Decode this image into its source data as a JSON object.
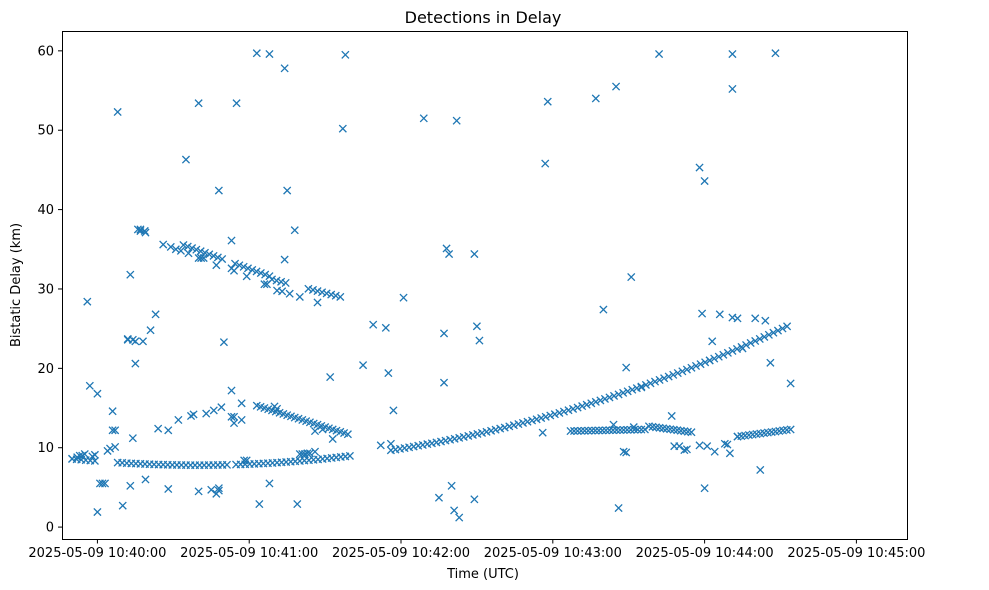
{
  "chart_data": {
    "type": "scatter",
    "title": "Detections in Delay",
    "xlabel": "Time (UTC)",
    "ylabel": "Bistatic Delay (km)",
    "marker": "x",
    "color": "#1f77b4",
    "x_unit": "seconds after 2025-05-09 10:39:00",
    "xlim": [
      46,
      380
    ],
    "ylim": [
      -1.5,
      62.5
    ],
    "x_ticks": [
      {
        "value": 60,
        "label": "2025-05-09 10:40:00"
      },
      {
        "value": 120,
        "label": "2025-05-09 10:41:00"
      },
      {
        "value": 180,
        "label": "2025-05-09 10:42:00"
      },
      {
        "value": 240,
        "label": "2025-05-09 10:43:00"
      },
      {
        "value": 300,
        "label": "2025-05-09 10:44:00"
      },
      {
        "value": 360,
        "label": "2025-05-09 10:45:00"
      }
    ],
    "y_ticks": [
      {
        "value": 0,
        "label": "0"
      },
      {
        "value": 10,
        "label": "10"
      },
      {
        "value": 20,
        "label": "20"
      },
      {
        "value": 30,
        "label": "30"
      },
      {
        "value": 40,
        "label": "40"
      },
      {
        "value": 50,
        "label": "50"
      },
      {
        "value": 60,
        "label": "60"
      }
    ],
    "grid": false,
    "tracks": [
      {
        "name": "rising track",
        "x_start": 50,
        "x_end": 334,
        "y_start": 8.6,
        "y_end": 25.5,
        "shape": "arc",
        "sag": 6.5,
        "step": 1.8,
        "gaps": [
          [
            60,
            67
          ],
          [
            112,
            113
          ],
          [
            160,
            175
          ]
        ]
      },
      {
        "name": "descending track",
        "x_start": 77,
        "x_end": 129,
        "y_start": 37.5,
        "y_end": 31.5,
        "shape": "linear",
        "step": 1.7,
        "gaps": [
          [
            80,
            93
          ],
          [
            111,
            114
          ]
        ]
      },
      {
        "name": "descending track tail",
        "x_start": 129,
        "x_end": 156,
        "y_start": 31.2,
        "y_end": 29.0,
        "shape": "linear",
        "step": 1.8,
        "gaps": [
          [
            136,
            142
          ]
        ]
      },
      {
        "name": "hump track",
        "x_start": 123,
        "x_end": 160,
        "y_start": 15.3,
        "y_end": 11.6,
        "shape": "linear",
        "step": 1.5,
        "gaps": []
      },
      {
        "name": "low track",
        "x_start": 247,
        "x_end": 277,
        "y_start": 12.1,
        "y_end": 12.3,
        "shape": "linear",
        "step": 1.4,
        "gaps": []
      },
      {
        "name": "low track mid",
        "x_start": 278,
        "x_end": 296,
        "y_start": 12.7,
        "y_end": 11.9,
        "shape": "linear",
        "step": 1.4,
        "gaps": []
      },
      {
        "name": "low track end",
        "x_start": 313,
        "x_end": 334,
        "y_start": 11.4,
        "y_end": 12.3,
        "shape": "linear",
        "step": 1.5,
        "gaps": []
      }
    ],
    "points": [
      [
        50,
        8.6
      ],
      [
        52,
        8.8
      ],
      [
        53,
        9.0
      ],
      [
        54,
        9.0
      ],
      [
        55,
        9.2
      ],
      [
        56,
        28.4
      ],
      [
        57,
        17.8
      ],
      [
        58,
        8.9
      ],
      [
        59,
        9.1
      ],
      [
        60,
        16.8
      ],
      [
        60,
        1.9
      ],
      [
        61,
        5.5
      ],
      [
        62,
        5.5
      ],
      [
        63,
        5.5
      ],
      [
        64,
        9.6
      ],
      [
        65,
        9.9
      ],
      [
        66,
        12.2
      ],
      [
        66,
        14.6
      ],
      [
        67,
        10.1
      ],
      [
        67,
        12.2
      ],
      [
        68,
        52.3
      ],
      [
        70,
        2.7
      ],
      [
        72,
        23.7
      ],
      [
        72,
        23.6
      ],
      [
        73,
        31.8
      ],
      [
        73,
        5.2
      ],
      [
        74,
        11.2
      ],
      [
        74,
        23.6
      ],
      [
        75,
        23.4
      ],
      [
        75,
        20.6
      ],
      [
        76,
        37.5
      ],
      [
        77,
        37.3
      ],
      [
        78,
        23.4
      ],
      [
        79,
        37.1
      ],
      [
        79,
        6.0
      ],
      [
        81,
        24.8
      ],
      [
        83,
        26.8
      ],
      [
        84,
        12.4
      ],
      [
        86,
        35.6
      ],
      [
        88,
        12.2
      ],
      [
        88,
        4.8
      ],
      [
        89,
        35.3
      ],
      [
        91,
        35.0
      ],
      [
        92,
        13.5
      ],
      [
        93,
        34.8
      ],
      [
        95,
        46.3
      ],
      [
        96,
        34.5
      ],
      [
        97,
        14.0
      ],
      [
        98,
        14.2
      ],
      [
        100,
        4.5
      ],
      [
        100,
        53.4
      ],
      [
        100,
        33.9
      ],
      [
        101,
        33.9
      ],
      [
        102,
        33.9
      ],
      [
        103,
        14.3
      ],
      [
        105,
        4.7
      ],
      [
        106,
        14.7
      ],
      [
        107,
        33.0
      ],
      [
        107,
        4.2
      ],
      [
        108,
        42.4
      ],
      [
        108,
        4.6
      ],
      [
        108,
        4.9
      ],
      [
        109,
        15.1
      ],
      [
        110,
        23.3
      ],
      [
        113,
        17.2
      ],
      [
        113,
        36.1
      ],
      [
        113,
        32.6
      ],
      [
        113,
        13.9
      ],
      [
        114,
        32.3
      ],
      [
        114,
        13.1
      ],
      [
        114,
        13.9
      ],
      [
        115,
        53.4
      ],
      [
        117,
        13.5
      ],
      [
        117,
        15.6
      ],
      [
        118,
        8.4
      ],
      [
        119,
        8.4
      ],
      [
        119,
        31.6
      ],
      [
        123,
        59.7
      ],
      [
        124,
        2.9
      ],
      [
        126,
        30.6
      ],
      [
        127,
        30.6
      ],
      [
        128,
        59.6
      ],
      [
        128,
        5.5
      ],
      [
        130,
        15.2
      ],
      [
        131,
        29.8
      ],
      [
        131,
        14.9
      ],
      [
        133,
        29.7
      ],
      [
        134,
        33.7
      ],
      [
        134,
        57.8
      ],
      [
        135,
        42.4
      ],
      [
        136,
        29.4
      ],
      [
        138,
        37.4
      ],
      [
        139,
        2.9
      ],
      [
        140,
        29.0
      ],
      [
        140,
        9.2
      ],
      [
        141,
        9.2
      ],
      [
        142,
        9.2
      ],
      [
        143,
        9.3
      ],
      [
        144,
        9.3
      ],
      [
        146,
        9.5
      ],
      [
        146,
        12.1
      ],
      [
        147,
        28.3
      ],
      [
        149,
        12.3
      ],
      [
        152,
        18.9
      ],
      [
        153,
        11.1
      ],
      [
        157,
        50.2
      ],
      [
        158,
        59.5
      ],
      [
        165,
        20.4
      ],
      [
        169,
        25.5
      ],
      [
        172,
        10.3
      ],
      [
        174,
        25.1
      ],
      [
        175,
        19.4
      ],
      [
        176,
        10.5
      ],
      [
        177,
        14.7
      ],
      [
        181,
        28.9
      ],
      [
        189,
        51.5
      ],
      [
        195,
        3.7
      ],
      [
        197,
        18.2
      ],
      [
        197,
        24.4
      ],
      [
        198,
        35.1
      ],
      [
        199,
        34.4
      ],
      [
        200,
        5.2
      ],
      [
        201,
        2.1
      ],
      [
        202,
        51.2
      ],
      [
        203,
        1.2
      ],
      [
        209,
        34.4
      ],
      [
        209,
        3.5
      ],
      [
        210,
        25.3
      ],
      [
        211,
        23.5
      ],
      [
        236,
        11.9
      ],
      [
        237,
        45.8
      ],
      [
        238,
        53.6
      ],
      [
        257,
        54.0
      ],
      [
        260,
        27.4
      ],
      [
        264,
        12.9
      ],
      [
        265,
        55.5
      ],
      [
        266,
        2.4
      ],
      [
        268,
        9.5
      ],
      [
        269,
        9.4
      ],
      [
        269,
        20.1
      ],
      [
        271,
        31.5
      ],
      [
        272,
        12.6
      ],
      [
        275,
        17.6
      ],
      [
        282,
        59.6
      ],
      [
        287,
        14.0
      ],
      [
        288,
        10.2
      ],
      [
        290,
        10.2
      ],
      [
        292,
        9.7
      ],
      [
        293,
        9.8
      ],
      [
        298,
        10.3
      ],
      [
        298,
        45.3
      ],
      [
        299,
        26.9
      ],
      [
        300,
        43.6
      ],
      [
        300,
        4.9
      ],
      [
        301,
        10.2
      ],
      [
        302,
        21.0
      ],
      [
        303,
        23.4
      ],
      [
        304,
        9.5
      ],
      [
        306,
        26.8
      ],
      [
        308,
        10.5
      ],
      [
        309,
        10.4
      ],
      [
        310,
        9.3
      ],
      [
        311,
        26.4
      ],
      [
        311,
        55.2
      ],
      [
        311,
        59.6
      ],
      [
        313,
        11.4
      ],
      [
        313,
        26.3
      ],
      [
        315,
        22.5
      ],
      [
        320,
        26.3
      ],
      [
        322,
        7.2
      ],
      [
        324,
        26.0
      ],
      [
        326,
        20.7
      ],
      [
        328,
        59.7
      ],
      [
        334,
        18.1
      ]
    ]
  }
}
